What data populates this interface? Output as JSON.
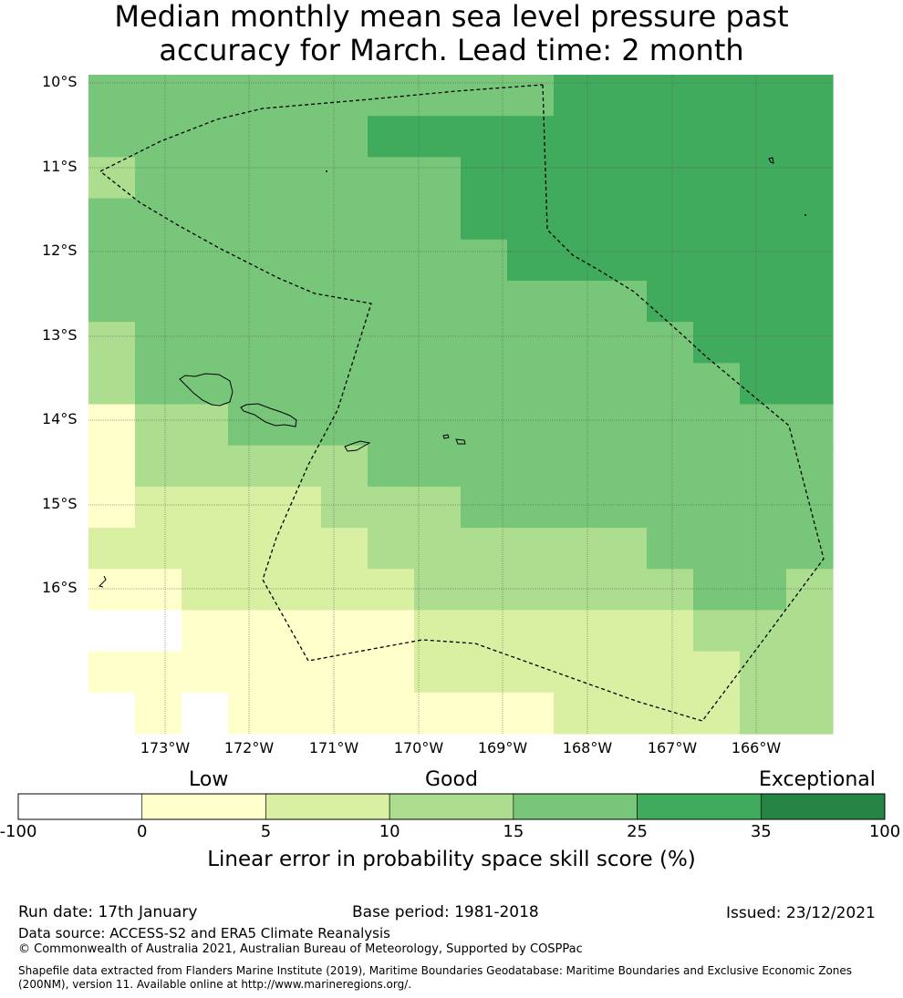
{
  "title_line1": "Median monthly mean sea level pressure past",
  "title_line2": "accuracy for March. Lead time: 2 month",
  "map": {
    "lat_labels": [
      "10°S",
      "11°S",
      "12°S",
      "13°S",
      "14°S",
      "15°S",
      "16°S"
    ],
    "lon_labels": [
      "173°W",
      "172°W",
      "171°W",
      "170°W",
      "169°W",
      "168°W",
      "167°W",
      "166°W"
    ],
    "grid_classes": [
      [
        5,
        5,
        5,
        5,
        5,
        5,
        5,
        5,
        5,
        5,
        6,
        6,
        6,
        6,
        6,
        6
      ],
      [
        5,
        5,
        5,
        5,
        5,
        5,
        6,
        6,
        6,
        6,
        6,
        6,
        6,
        6,
        6,
        6
      ],
      [
        4,
        5,
        5,
        5,
        5,
        5,
        5,
        5,
        6,
        6,
        6,
        6,
        6,
        6,
        6,
        6
      ],
      [
        5,
        5,
        5,
        5,
        5,
        5,
        5,
        5,
        6,
        6,
        6,
        6,
        6,
        6,
        6,
        6
      ],
      [
        5,
        5,
        5,
        5,
        5,
        5,
        5,
        5,
        5,
        6,
        6,
        6,
        6,
        6,
        6,
        6
      ],
      [
        5,
        5,
        5,
        5,
        5,
        5,
        5,
        5,
        5,
        5,
        5,
        5,
        6,
        6,
        6,
        6
      ],
      [
        4,
        5,
        5,
        5,
        5,
        5,
        5,
        5,
        5,
        5,
        5,
        5,
        5,
        6,
        6,
        6
      ],
      [
        4,
        5,
        5,
        5,
        5,
        5,
        5,
        5,
        5,
        5,
        5,
        5,
        5,
        5,
        6,
        6
      ],
      [
        2,
        4,
        4,
        5,
        5,
        5,
        5,
        5,
        5,
        5,
        5,
        5,
        5,
        5,
        5,
        5
      ],
      [
        2,
        4,
        4,
        4,
        4,
        4,
        5,
        5,
        5,
        5,
        5,
        5,
        5,
        5,
        5,
        5
      ],
      [
        2,
        3,
        3,
        3,
        3,
        4,
        4,
        4,
        5,
        5,
        5,
        5,
        5,
        5,
        5,
        5
      ],
      [
        3,
        3,
        3,
        3,
        3,
        3,
        4,
        4,
        4,
        4,
        4,
        4,
        5,
        5,
        5,
        5
      ],
      [
        2,
        2,
        3,
        3,
        3,
        3,
        3,
        4,
        4,
        4,
        4,
        4,
        4,
        5,
        5,
        4
      ],
      [
        1,
        1,
        2,
        2,
        2,
        2,
        2,
        3,
        3,
        3,
        3,
        3,
        3,
        4,
        4,
        4
      ],
      [
        2,
        2,
        2,
        2,
        2,
        2,
        2,
        3,
        3,
        3,
        3,
        3,
        3,
        3,
        4,
        4
      ],
      [
        1,
        2,
        1,
        2,
        2,
        2,
        2,
        2,
        2,
        2,
        3,
        3,
        3,
        3,
        4,
        4
      ]
    ],
    "colors": {
      "class_1": "#ffffff",
      "class_2": "#ffffcc",
      "class_3": "#d9f0a3",
      "class_4": "#addd8e",
      "class_5": "#78c679",
      "class_6": "#41ab5d",
      "class_7": "#238443"
    }
  },
  "colorbar": {
    "categories": [
      "Low",
      "Good",
      "Exceptional"
    ],
    "ticks": [
      "-100",
      "0",
      "5",
      "10",
      "15",
      "25",
      "35",
      "100"
    ],
    "bins": [
      {
        "from": "-100",
        "to": "0",
        "color": "#ffffff"
      },
      {
        "from": "0",
        "to": "5",
        "color": "#ffffcc"
      },
      {
        "from": "5",
        "to": "10",
        "color": "#d9f0a3"
      },
      {
        "from": "10",
        "to": "15",
        "color": "#addd8e"
      },
      {
        "from": "15",
        "to": "25",
        "color": "#78c679"
      },
      {
        "from": "25",
        "to": "35",
        "color": "#41ab5d"
      },
      {
        "from": "35",
        "to": "100",
        "color": "#238443"
      }
    ],
    "title": "Linear error in probability space skill score (%)"
  },
  "footer": {
    "run_date": "Run date: 17th January",
    "base_period": "Base period: 1981-2018",
    "issued": "Issued: 23/12/2021",
    "data_source": "Data source: ACCESS-S2 and ERA5 Climate Reanalysis",
    "copyright": "© Commonwealth of Australia 2021, Australian Bureau of Meteorology, Supported by COSPPac",
    "shapefile_line1": "Shapefile data extracted from Flanders Marine Institute (2019), Maritime Boundaries Geodatabase: Maritime Boundaries and Exclusive Economic Zones",
    "shapefile_line2": "(200NM), version 11. Available online at http://www.marineregions.org/."
  }
}
